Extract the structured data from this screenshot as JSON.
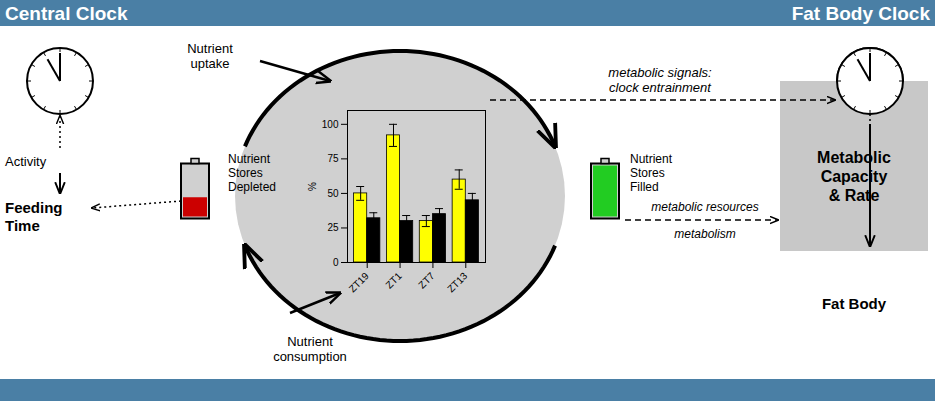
{
  "chart_data": {
    "type": "bar",
    "title": "Central Clock",
    "annotations": [
      "Fat Body Clock",
      "Activity",
      "Feeding\nTime",
      "Nutrient\nuptake",
      "Nutrient\nconsumption",
      "Nutrient\nStores\nDepleted",
      "Nutrient\nStores\nFilled",
      "Metabolic\nCapacity\n& Rate",
      "Fat Body",
      "metabolic signals:",
      "clock entrainment",
      "metabolic resources",
      "metabolism"
    ],
    "categories": [
      "ZT19",
      "ZT1",
      "ZT7",
      "ZT13"
    ],
    "series": [
      {
        "color": "yellow",
        "values": [
          50,
          92,
          30,
          60
        ],
        "errors": [
          5,
          8,
          4,
          7
        ]
      },
      {
        "color": "black",
        "values": [
          32,
          30,
          35,
          45
        ],
        "errors": [
          4,
          4,
          4,
          5
        ]
      }
    ],
    "ylabel": "%",
    "ylim": [
      0,
      110
    ],
    "yticks": [
      0,
      25,
      50,
      75,
      100
    ],
    "grid": false
  }
}
